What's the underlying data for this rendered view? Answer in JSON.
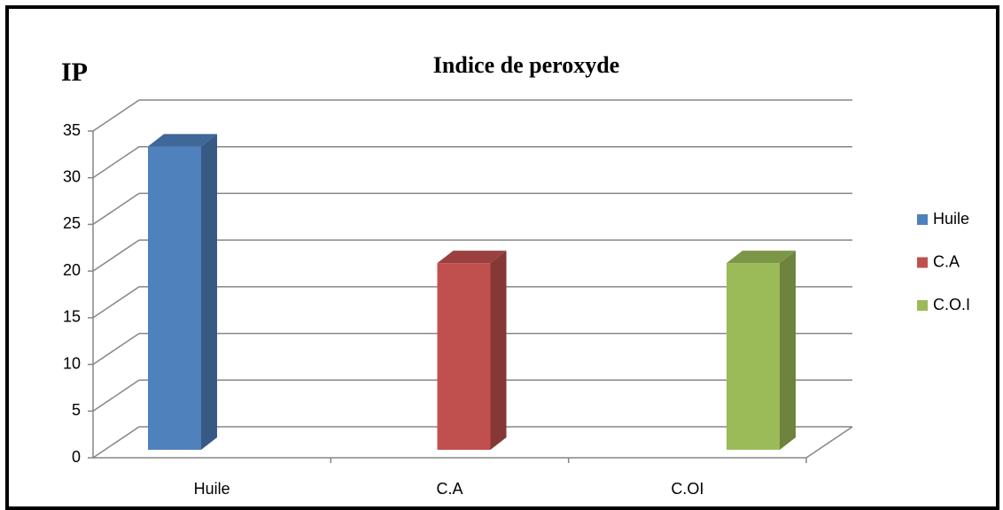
{
  "chart_data": {
    "type": "bar3d",
    "title": "Indice de peroxyde",
    "y_label": "IP",
    "categories": [
      "Huile",
      "C.A",
      "C.OI"
    ],
    "series": [
      {
        "name": "Huile",
        "color": "#4f81bd",
        "values": [
          32.5,
          null,
          null
        ]
      },
      {
        "name": "C.A",
        "color": "#c0504d",
        "values": [
          null,
          20,
          null
        ]
      },
      {
        "name": "C.O.I",
        "color": "#9bbb59",
        "values": [
          null,
          null,
          20
        ]
      }
    ],
    "ylim": [
      0,
      35
    ],
    "yticks": [
      0,
      5,
      10,
      15,
      20,
      25,
      30,
      35
    ],
    "grid": true,
    "legend": "right"
  }
}
